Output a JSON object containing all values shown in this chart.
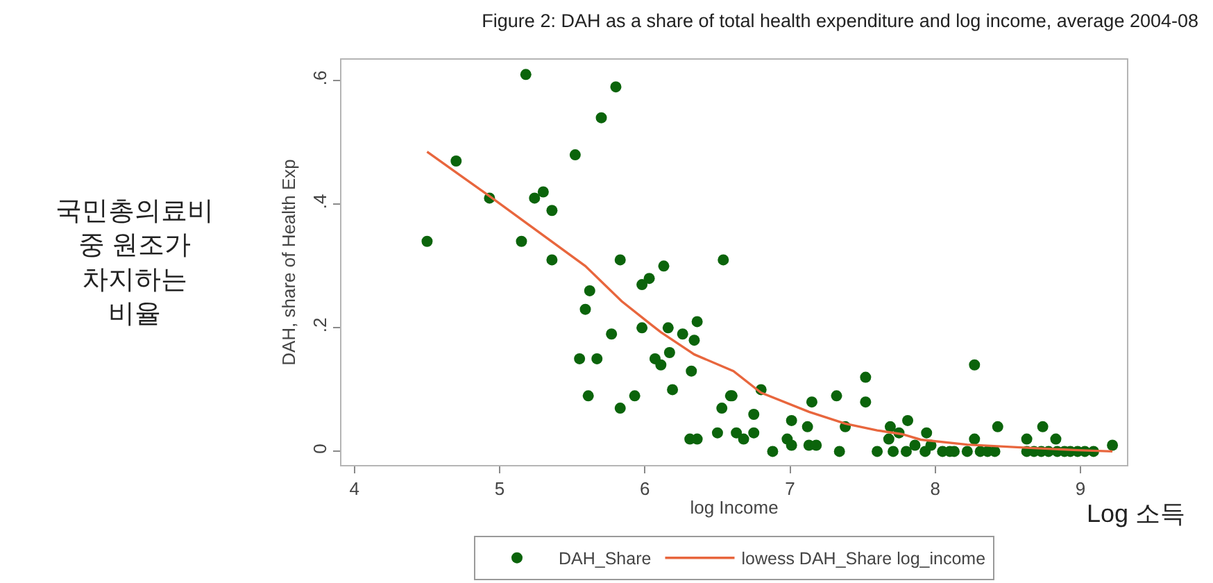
{
  "chart_data": {
    "type": "scatter",
    "title": "Figure 2: DAH as a share of total health expenditure and log income, average 2004-08",
    "xlabel": "log Income",
    "ylabel": "DAH, share of Health Exp",
    "annotations": [
      "국민총의료비\n중 원조가\n차지하는\n비율",
      "Log 소득"
    ],
    "series": [
      {
        "name": "DAH_Share",
        "color": "#0b640b",
        "marker": "circle",
        "x": [
          4.5,
          4.7,
          4.93,
          5.15,
          5.18,
          5.24,
          5.3,
          5.36,
          5.36,
          5.52,
          5.55,
          5.59,
          5.61,
          5.62,
          5.67,
          5.7,
          5.77,
          5.8,
          5.83,
          5.83,
          5.93,
          5.98,
          5.98,
          6.03,
          6.07,
          6.11,
          6.13,
          6.16,
          6.17,
          6.19,
          6.26,
          6.31,
          6.32,
          6.34,
          6.36,
          6.36,
          6.5,
          6.53,
          6.54,
          6.59,
          6.6,
          6.63,
          6.68,
          6.75,
          6.75,
          6.8,
          6.88,
          6.98,
          7.01,
          7.01,
          7.12,
          7.13,
          7.15,
          7.18,
          7.32,
          7.34,
          7.38,
          7.52,
          7.52,
          7.6,
          7.69,
          7.68,
          7.75,
          7.71,
          7.81,
          7.8,
          7.86,
          7.93,
          7.94,
          7.97,
          8.05,
          8.1,
          8.13,
          8.22,
          8.27,
          8.27,
          8.31,
          8.36,
          8.41,
          8.43,
          8.63,
          8.63,
          8.68,
          8.73,
          8.74,
          8.78,
          8.83,
          8.84,
          8.89,
          8.93,
          8.98,
          9.03,
          9.09,
          9.22
        ],
        "values": [
          0.34,
          0.47,
          0.41,
          0.34,
          0.61,
          0.41,
          0.42,
          0.39,
          0.31,
          0.48,
          0.15,
          0.23,
          0.09,
          0.26,
          0.15,
          0.54,
          0.19,
          0.59,
          0.31,
          0.07,
          0.09,
          0.2,
          0.27,
          0.28,
          0.15,
          0.14,
          0.3,
          0.2,
          0.16,
          0.1,
          0.19,
          0.02,
          0.13,
          0.18,
          0.21,
          0.02,
          0.03,
          0.07,
          0.31,
          0.09,
          0.09,
          0.03,
          0.02,
          0.06,
          0.03,
          0.1,
          0.0,
          0.02,
          0.05,
          0.01,
          0.04,
          0.01,
          0.08,
          0.01,
          0.09,
          0.0,
          0.04,
          0.12,
          0.08,
          0.0,
          0.04,
          0.02,
          0.03,
          0.0,
          0.05,
          0.0,
          0.01,
          0.0,
          0.03,
          0.01,
          0.0,
          0.0,
          0.0,
          0.0,
          0.14,
          0.02,
          0.0,
          0.0,
          0.0,
          0.04,
          0.02,
          0.0,
          0.0,
          0.0,
          0.04,
          0.0,
          0.02,
          0.0,
          0.0,
          0.0,
          0.0,
          0.0,
          0.0,
          0.01
        ]
      },
      {
        "name": "lowess DAH_Share log_income",
        "type": "line",
        "color": "#e8663d",
        "marker": "none",
        "line_style": "solid",
        "x": [
          4.5,
          4.93,
          5.59,
          5.84,
          6.05,
          6.11,
          6.34,
          6.61,
          6.8,
          7.13,
          7.38,
          7.6,
          7.77,
          7.9,
          8.22,
          8.63,
          8.98,
          9.22
        ],
        "values": [
          0.485,
          0.413,
          0.3,
          0.243,
          0.204,
          0.193,
          0.157,
          0.13,
          0.095,
          0.064,
          0.045,
          0.034,
          0.028,
          0.019,
          0.011,
          0.006,
          0.002,
          0.0
        ]
      }
    ],
    "xlim": [
      3.91,
      9.32
    ],
    "ylim": [
      -0.022,
      0.634
    ],
    "xticks": [
      4,
      5,
      6,
      7,
      8,
      9
    ],
    "yticks": [
      0,
      {
        "value": 0.2,
        "label": ".2"
      },
      {
        "value": 0.4,
        "label": ".4"
      },
      {
        "value": 0.6,
        "label": ".6"
      }
    ],
    "legend": "bottom"
  }
}
